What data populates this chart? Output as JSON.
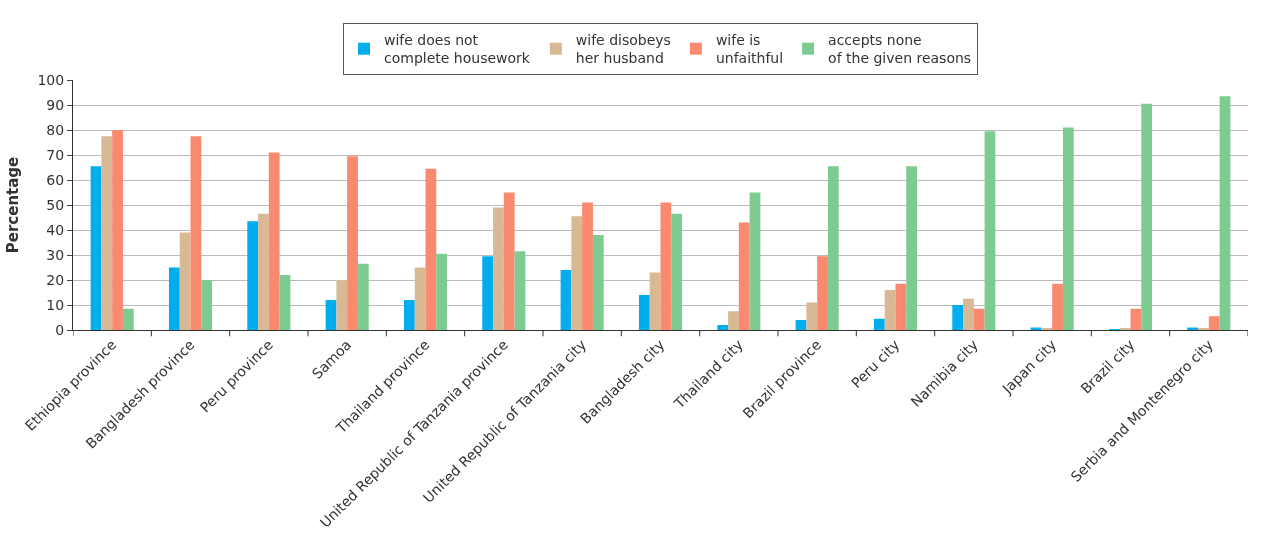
{
  "chart_data": {
    "type": "bar",
    "ylabel": "Percentage",
    "categories": [
      "Ethiopia province",
      "Bangladesh province",
      "Peru province",
      "Samoa",
      "Thailand province",
      "United Republic of Tanzania province",
      "United Republic of Tanzania city",
      "Bangladesh city",
      "Thailand city",
      "Brazil province",
      "Peru city",
      "Namibia city",
      "Japan city",
      "Brazil city",
      "Serbia and Montenegro city"
    ],
    "series": [
      {
        "name": "wife does not\ncomplete housework",
        "color": "#00aeef",
        "values": [
          65.5,
          25,
          43.5,
          12,
          12,
          29.5,
          24,
          14,
          2,
          4,
          4.5,
          10,
          1,
          0.3,
          1
        ]
      },
      {
        "name": "wife disobeys\nher husband",
        "color": "#d9b994",
        "values": [
          77.5,
          39,
          46.5,
          20,
          25,
          49,
          45.5,
          23,
          7.5,
          11,
          16,
          12.5,
          0.5,
          0.5,
          0.5
        ]
      },
      {
        "name": "wife is\nunfaithful",
        "color": "#f98a6f",
        "values": [
          80,
          77.5,
          71,
          69.5,
          64.5,
          55,
          51,
          51,
          43,
          29.5,
          18.5,
          8.5,
          18.5,
          8.5,
          5.5
        ]
      },
      {
        "name": "accepts none\nof the given reasons",
        "color": "#7dcb91",
        "values": [
          8.5,
          20,
          22,
          26.5,
          30.5,
          31.5,
          38,
          46.5,
          55,
          65.5,
          65.5,
          79.5,
          81,
          90.5,
          93.5
        ]
      }
    ],
    "ylim": [
      0,
      100
    ],
    "yticks": [
      0,
      10,
      20,
      30,
      40,
      50,
      60,
      70,
      80,
      90,
      100
    ],
    "grid": "y",
    "legend": "top"
  }
}
